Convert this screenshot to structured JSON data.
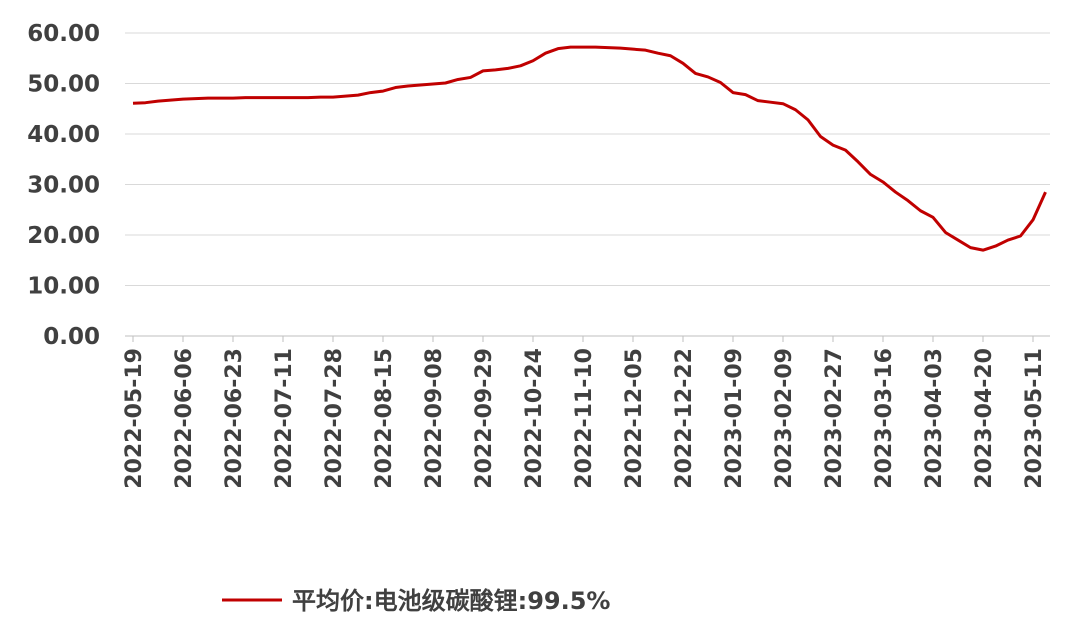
{
  "chart_data": {
    "type": "line",
    "categories": [
      "2022-05-19",
      null,
      null,
      null,
      "2022-06-06",
      null,
      null,
      null,
      "2022-06-23",
      null,
      null,
      null,
      "2022-07-11",
      null,
      null,
      null,
      "2022-07-28",
      null,
      null,
      null,
      "2022-08-15",
      null,
      null,
      null,
      "2022-09-08",
      null,
      null,
      null,
      "2022-09-29",
      null,
      null,
      null,
      "2022-10-24",
      null,
      null,
      null,
      "2022-11-10",
      null,
      null,
      null,
      "2022-12-05",
      null,
      null,
      null,
      "2022-12-22",
      null,
      null,
      null,
      "2023-01-09",
      null,
      null,
      null,
      "2023-02-09",
      null,
      null,
      null,
      "2023-02-27",
      null,
      null,
      null,
      "2023-03-16",
      null,
      null,
      null,
      "2023-04-03",
      null,
      null,
      null,
      "2023-04-20",
      null,
      null,
      null,
      "2023-05-11",
      null
    ],
    "series": [
      {
        "name": "平均价:电池级碳酸锂:99.5%",
        "color": "#c00000",
        "values": [
          46.1,
          46.2,
          46.5,
          46.7,
          46.9,
          47.0,
          47.1,
          47.1,
          47.1,
          47.2,
          47.2,
          47.2,
          47.2,
          47.2,
          47.2,
          47.3,
          47.3,
          47.5,
          47.7,
          48.2,
          48.5,
          49.2,
          49.5,
          49.7,
          49.9,
          50.1,
          50.8,
          51.2,
          52.5,
          52.7,
          53.0,
          53.5,
          54.5,
          56.0,
          56.9,
          57.2,
          57.2,
          57.2,
          57.1,
          57.0,
          56.8,
          56.6,
          56.0,
          55.5,
          54.0,
          52.0,
          51.3,
          50.2,
          48.2,
          47.8,
          46.6,
          46.3,
          46.0,
          44.8,
          42.8,
          39.5,
          37.8,
          36.8,
          34.5,
          32.0,
          30.5,
          28.5,
          26.8,
          24.8,
          23.5,
          20.5,
          19.0,
          17.5,
          17.0,
          17.8,
          19.0,
          19.8,
          23.0,
          28.5
        ]
      }
    ],
    "ylim": [
      0,
      60
    ],
    "yticks": [
      {
        "value": 0,
        "label": "0.00"
      },
      {
        "value": 10,
        "label": "10.00"
      },
      {
        "value": 20,
        "label": "20.00"
      },
      {
        "value": 30,
        "label": "30.00"
      },
      {
        "value": 40,
        "label": "40.00"
      },
      {
        "value": 50,
        "label": "50.00"
      },
      {
        "value": 60,
        "label": "60.00"
      }
    ],
    "grid": true,
    "legend": "bottom"
  }
}
